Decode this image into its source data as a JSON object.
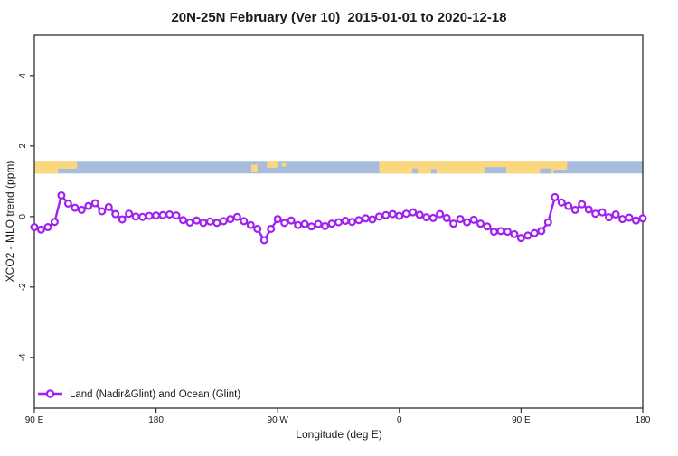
{
  "title": "20N-25N February (Ver 10)  2015-01-01 to 2020-12-18",
  "legend": {
    "label": "Land (Nadir&Glint) and Ocean (Glint)"
  },
  "colors": {
    "series": "#A020F0",
    "marker_fill": "#FFFFFF",
    "land": "#FBD77E",
    "ocean": "#A8BDDC",
    "axis": "#2E2E2E",
    "background": "#FFFFFF"
  },
  "chart_data": {
    "type": "line",
    "title": "20N-25N February (Ver 10)  2015-01-01 to 2020-12-18",
    "xlabel": "Longitude (deg E)",
    "ylabel": "XCO2 - MLO trend (ppm)",
    "xlim": [
      90,
      540
    ],
    "ylim": [
      -5.44,
      5.15
    ],
    "grid": false,
    "legend_position": "bottom-left",
    "x_ticks": [
      {
        "v": 90,
        "label": "90 E"
      },
      {
        "v": 180,
        "label": "180"
      },
      {
        "v": 270,
        "label": "90 W"
      },
      {
        "v": 360,
        "label": "0"
      },
      {
        "v": 450,
        "label": "90 E"
      },
      {
        "v": 540,
        "label": "180"
      }
    ],
    "y_ticks": [
      {
        "v": 4,
        "label": "4"
      },
      {
        "v": 2,
        "label": "2"
      },
      {
        "v": 0,
        "label": "0"
      },
      {
        "v": -2,
        "label": "-2"
      },
      {
        "v": -4,
        "label": "-4"
      }
    ],
    "x_start": 90,
    "x_step": 5,
    "series": [
      {
        "name": "Land (Nadir&Glint) and Ocean (Glint)",
        "values": [
          -0.3,
          -0.37,
          -0.3,
          -0.15,
          0.6,
          0.37,
          0.25,
          0.19,
          0.3,
          0.38,
          0.15,
          0.27,
          0.07,
          -0.08,
          0.08,
          0.0,
          -0.01,
          0.02,
          0.03,
          0.04,
          0.06,
          0.03,
          -0.1,
          -0.17,
          -0.11,
          -0.18,
          -0.14,
          -0.18,
          -0.13,
          -0.07,
          -0.01,
          -0.13,
          -0.24,
          -0.35,
          -0.67,
          -0.35,
          -0.07,
          -0.18,
          -0.11,
          -0.24,
          -0.21,
          -0.28,
          -0.21,
          -0.27,
          -0.2,
          -0.16,
          -0.12,
          -0.15,
          -0.1,
          -0.05,
          -0.08,
          0.0,
          0.04,
          0.07,
          0.02,
          0.08,
          0.12,
          0.05,
          -0.02,
          -0.04,
          0.07,
          -0.04,
          -0.2,
          -0.07,
          -0.16,
          -0.09,
          -0.2,
          -0.28,
          -0.43,
          -0.41,
          -0.43,
          -0.5,
          -0.61,
          -0.54,
          -0.47,
          -0.41,
          -0.16,
          0.55,
          0.4,
          0.3,
          0.19,
          0.35,
          0.2,
          0.08,
          0.12,
          -0.02,
          0.06,
          -0.07,
          -0.03,
          -0.11,
          -0.05
        ]
      }
    ],
    "map_band": {
      "description": "world-coastline strip at 20N-25N",
      "y_range": [
        1.22,
        1.58
      ],
      "land_patches": [
        {
          "x0": 90,
          "x1": 107.5,
          "y0": 0,
          "y1": 1
        },
        {
          "x0": 107.5,
          "x1": 121.5,
          "y0": 0,
          "y1": 0.62
        },
        {
          "x0": 250.5,
          "x1": 255,
          "y0": 0.3,
          "y1": 0.9
        },
        {
          "x0": 262,
          "x1": 270.5,
          "y0": 0,
          "y1": 0.55
        },
        {
          "x0": 273,
          "x1": 276,
          "y0": 0.1,
          "y1": 0.45
        },
        {
          "x0": 345,
          "x1": 423,
          "y0": 0,
          "y1": 1
        },
        {
          "x0": 423,
          "x1": 439,
          "y0": 0,
          "y1": 0.5
        },
        {
          "x0": 439,
          "x1": 474,
          "y0": 0,
          "y1": 1
        },
        {
          "x0": 474,
          "x1": 484,
          "y0": 0,
          "y1": 0.7
        }
      ],
      "ocean_notches": [
        {
          "x0": 369.5,
          "x1": 373.5,
          "y0": 0.6,
          "y1": 1
        },
        {
          "x0": 383.5,
          "x1": 387.5,
          "y0": 0.65,
          "y1": 1
        },
        {
          "x0": 464,
          "x1": 472.5,
          "y0": 0.6,
          "y1": 1
        }
      ]
    }
  }
}
